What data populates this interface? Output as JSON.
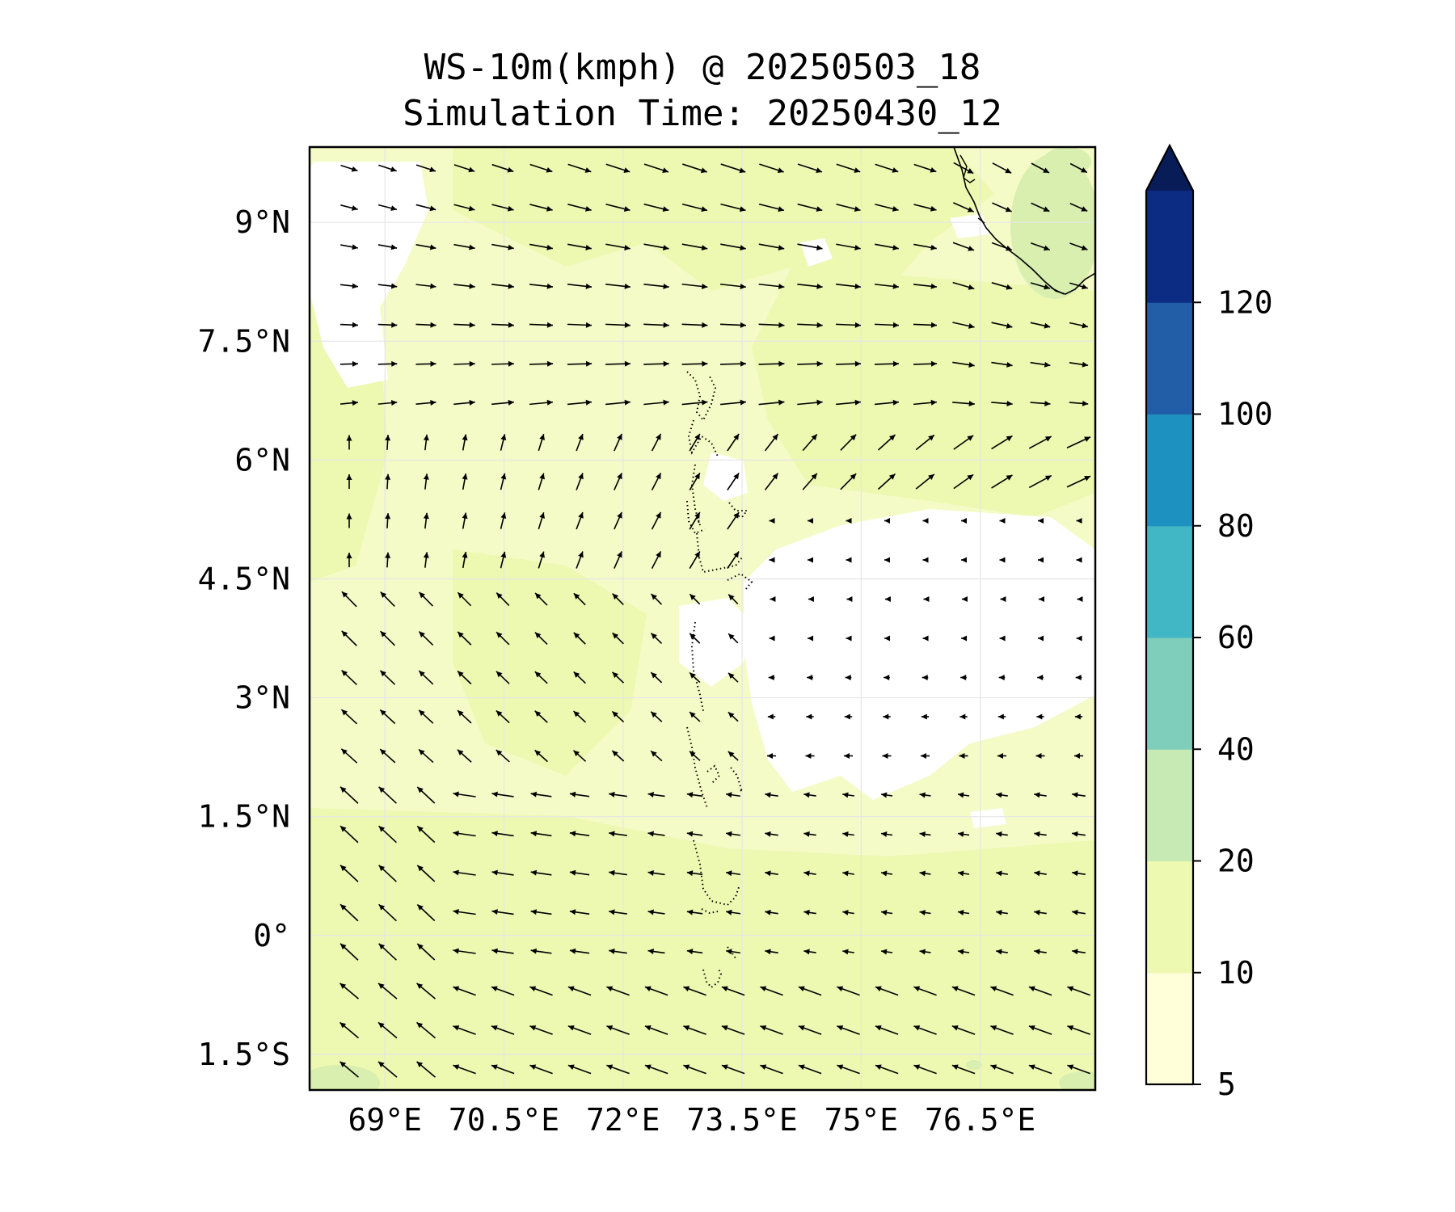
{
  "title": {
    "line1": "WS-10m(kmph) @ 20250503_18",
    "line2": "Simulation Time: 20250430_12"
  },
  "map": {
    "lat_labels": [
      {
        "lat": 9.0,
        "label": "9°N"
      },
      {
        "lat": 7.5,
        "label": "7.5°N"
      },
      {
        "lat": 6.0,
        "label": "6°N"
      },
      {
        "lat": 4.5,
        "label": "4.5°N"
      },
      {
        "lat": 3.0,
        "label": "3°N"
      },
      {
        "lat": 1.5,
        "label": "1.5°N"
      },
      {
        "lat": 0.0,
        "label": "0°"
      },
      {
        "lat": -1.5,
        "label": "1.5°S"
      }
    ],
    "lon_labels": [
      {
        "lon": 69.0,
        "label": "69°E"
      },
      {
        "lon": 70.5,
        "label": "70.5°E"
      },
      {
        "lon": 72.0,
        "label": "72°E"
      },
      {
        "lon": 73.5,
        "label": "73.5°E"
      },
      {
        "lon": 75.0,
        "label": "75°E"
      },
      {
        "lon": 76.5,
        "label": "76.5°E"
      }
    ],
    "extent": {
      "lon_min": 68.05,
      "lon_max": 77.95,
      "lat_min": -1.95,
      "lat_max": 9.95
    },
    "gridlines": true
  },
  "colorbar": {
    "levels": [
      5,
      10,
      20,
      40,
      60,
      80,
      100,
      120
    ],
    "labels": [
      "5",
      "10",
      "20",
      "40",
      "60",
      "80",
      "100",
      "120"
    ],
    "colors": [
      "#ffffd9",
      "#edf8b1",
      "#c7e9b4",
      "#7fcdbb",
      "#41b6c4",
      "#1d91c0",
      "#225ea8",
      "#0c2c84"
    ],
    "extend": "max",
    "extend_color": "#081d58"
  },
  "colors": {
    "field_low": "#ffffff",
    "field_base": "#f4fbc6",
    "field_mid": "#edf8b1",
    "field_high": "#d8efb0",
    "arrow": "#000000",
    "coast": "#000000",
    "grid": "#e6e6e6"
  }
}
